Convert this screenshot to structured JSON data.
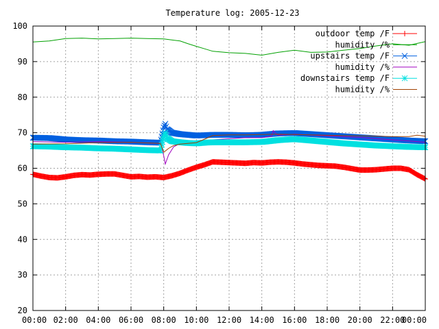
{
  "chart_data": {
    "type": "line",
    "title": "Temperature log: 2005-12-23",
    "xlabel": "",
    "ylabel": "",
    "ylim": [
      20,
      100
    ],
    "yticks": [
      20,
      30,
      40,
      50,
      60,
      70,
      80,
      90,
      100
    ],
    "xlim": [
      0,
      24
    ],
    "xticks": [
      0,
      2,
      4,
      6,
      8,
      10,
      12,
      14,
      16,
      18,
      20,
      22,
      24
    ],
    "xtick_labels": [
      "00:00",
      "02:00",
      "04:00",
      "06:00",
      "08:00",
      "10:00",
      "12:00",
      "14:00",
      "16:00",
      "18:00",
      "20:00",
      "22:00",
      "00:00"
    ],
    "grid": true,
    "legend_position": "top-right",
    "series": [
      {
        "name": "outdoor temp /F",
        "color": "#ff0000",
        "marker": "plus",
        "x": [
          0,
          0.5,
          1,
          1.5,
          2,
          2.5,
          3,
          3.5,
          4,
          4.5,
          5,
          5.5,
          6,
          6.5,
          7,
          7.5,
          8,
          8.5,
          9,
          9.5,
          10,
          10.5,
          11,
          11.5,
          12,
          12.5,
          13,
          13.5,
          14,
          14.5,
          15,
          15.5,
          16,
          16.5,
          17,
          17.5,
          18,
          18.5,
          19,
          19.5,
          20,
          20.5,
          21,
          21.5,
          22,
          22.5,
          23,
          23.5,
          24
        ],
        "y": [
          58.3,
          57.8,
          57.4,
          57.3,
          57.6,
          58.0,
          58.2,
          58.1,
          58.3,
          58.4,
          58.4,
          58.0,
          57.6,
          57.7,
          57.5,
          57.6,
          57.4,
          57.9,
          58.6,
          59.5,
          60.3,
          61.0,
          61.8,
          61.7,
          61.6,
          61.5,
          61.4,
          61.6,
          61.5,
          61.7,
          61.8,
          61.7,
          61.5,
          61.2,
          61.0,
          60.8,
          60.7,
          60.6,
          60.3,
          59.9,
          59.5,
          59.5,
          59.6,
          59.8,
          60.0,
          60.0,
          59.6,
          58.2,
          57.0
        ]
      },
      {
        "name": "humidity /%",
        "color": "#00a000",
        "marker": "none",
        "x": [
          0,
          1,
          2,
          3,
          4,
          5,
          6,
          7,
          8,
          9,
          9.5,
          10,
          10.5,
          11,
          12,
          13,
          14,
          15,
          16,
          17,
          18,
          19,
          20,
          21,
          22,
          23,
          24
        ],
        "y": [
          95.5,
          95.8,
          96.5,
          96.6,
          96.4,
          96.5,
          96.6,
          96.5,
          96.4,
          95.8,
          95.0,
          94.3,
          93.6,
          92.9,
          92.5,
          92.3,
          91.8,
          92.6,
          93.2,
          92.6,
          92.7,
          93.2,
          93.7,
          94.4,
          95.0,
          94.6,
          95.6
        ]
      },
      {
        "name": "upstairs temp /F",
        "color": "#0060e0",
        "marker": "cross",
        "x": [
          0,
          1,
          2,
          3,
          4,
          5,
          6,
          7,
          7.8,
          8.0,
          8.1,
          8.2,
          8.5,
          9,
          9.5,
          10,
          10.5,
          11,
          12,
          13,
          14,
          15,
          16,
          17,
          18,
          19,
          20,
          21,
          22,
          23,
          24
        ],
        "y": [
          68.6,
          68.5,
          68.1,
          67.9,
          67.8,
          67.6,
          67.5,
          67.3,
          67.2,
          71.5,
          72.5,
          71.0,
          70.0,
          69.6,
          69.4,
          69.2,
          69.3,
          69.4,
          69.4,
          69.3,
          69.4,
          69.8,
          69.9,
          69.6,
          69.3,
          69.0,
          68.7,
          68.4,
          68.1,
          67.8,
          67.6
        ]
      },
      {
        "name": "humidity /%",
        "color": "#a000c0",
        "marker": "none",
        "x": [
          0,
          2,
          4,
          6,
          7.8,
          8.0,
          8.1,
          8.3,
          8.6,
          9,
          10,
          11,
          12,
          13,
          14,
          14.6,
          14.7,
          14.9,
          15,
          16,
          18,
          20,
          22,
          23,
          24
        ],
        "y": [
          67.5,
          67.3,
          67.5,
          67.3,
          67.0,
          63.5,
          61.2,
          63.8,
          66.0,
          67.0,
          67.5,
          68.0,
          68.3,
          68.6,
          68.6,
          69.0,
          70.6,
          69.6,
          69.3,
          69.6,
          69.1,
          68.7,
          68.0,
          67.7,
          67.3
        ]
      },
      {
        "name": "downstairs temp /F",
        "color": "#00e0e0",
        "marker": "star",
        "x": [
          0,
          1,
          2,
          3,
          4,
          5,
          6,
          7,
          7.8,
          8.0,
          8.1,
          8.2,
          8.5,
          9,
          9.5,
          10,
          10.5,
          11,
          12,
          13,
          14,
          15,
          16,
          17,
          18,
          19,
          20,
          21,
          22,
          23,
          24
        ],
        "y": [
          66.2,
          66.1,
          65.9,
          65.8,
          65.6,
          65.5,
          65.3,
          65.1,
          65.0,
          69.0,
          70.0,
          68.5,
          67.6,
          67.3,
          67.1,
          67.0,
          67.2,
          67.3,
          67.3,
          67.3,
          67.4,
          67.9,
          68.2,
          67.8,
          67.4,
          67.0,
          66.7,
          66.4,
          66.2,
          66.0,
          65.9
        ]
      },
      {
        "name": "humidity /%",
        "color": "#a04000",
        "marker": "none",
        "x": [
          0,
          2,
          4,
          6,
          7.8,
          8.0,
          8.3,
          8.6,
          9,
          10,
          10.5,
          11,
          12,
          13,
          14,
          15,
          16,
          18,
          20,
          22,
          23,
          23.5,
          24
        ],
        "y": [
          66.8,
          66.9,
          67.2,
          67.3,
          67.0,
          64.5,
          65.6,
          66.4,
          66.8,
          67.2,
          68.2,
          69.2,
          69.4,
          69.4,
          69.5,
          69.6,
          69.5,
          69.3,
          69.1,
          68.9,
          68.9,
          69.3,
          69.0
        ]
      }
    ]
  }
}
